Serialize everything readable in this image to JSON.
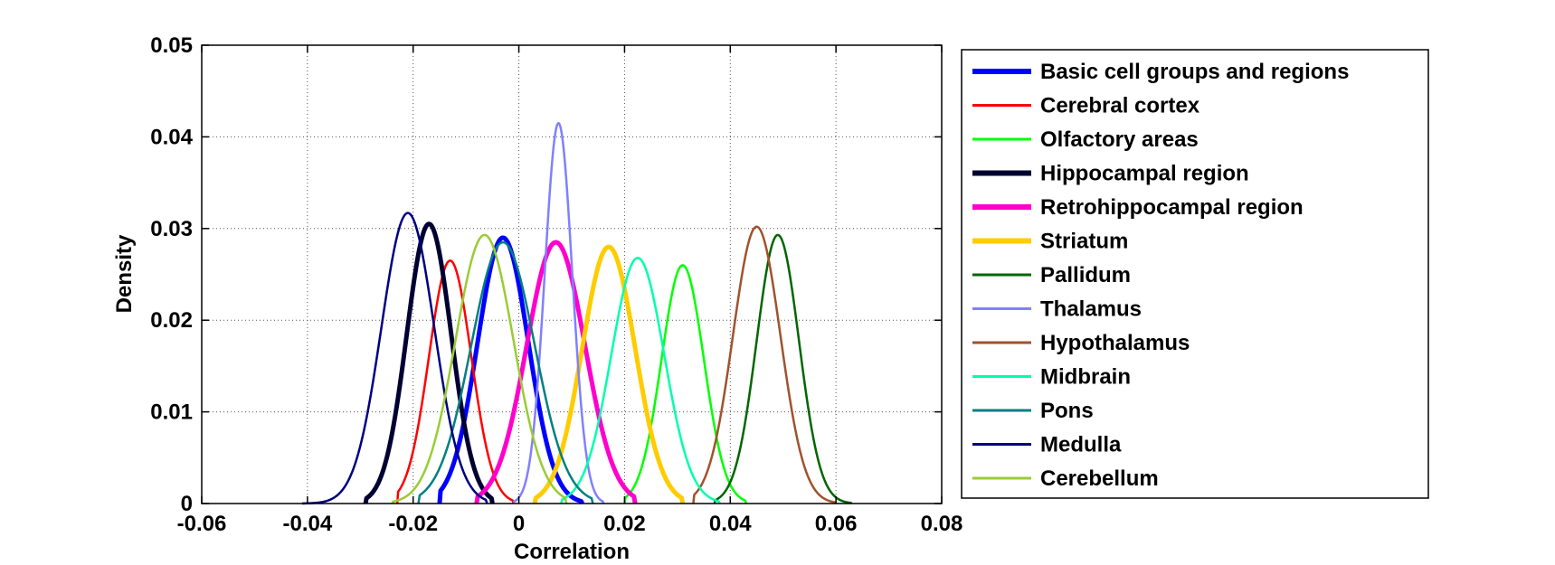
{
  "chart_data": {
    "type": "line",
    "title": "",
    "xlabel": "Correlation",
    "ylabel": "Density",
    "xlim": [
      -0.06,
      0.08
    ],
    "ylim": [
      0,
      0.05
    ],
    "xticks": [
      -0.06,
      -0.04,
      -0.02,
      0,
      0.02,
      0.04,
      0.06,
      0.08
    ],
    "xtick_labels": [
      "-0.06",
      "-0.04",
      "-0.02",
      "0",
      "0.02",
      "0.04",
      "0.06",
      "0.08"
    ],
    "yticks": [
      0,
      0.01,
      0.02,
      0.03,
      0.04,
      0.05
    ],
    "ytick_labels": [
      "0",
      "0.01",
      "0.02",
      "0.03",
      "0.04",
      "0.05"
    ],
    "grid": true,
    "legend_position": "outside-right",
    "series": [
      {
        "name": "Basic cell groups and regions",
        "color": "#0000ff",
        "width": "thick",
        "mean": -0.003,
        "sigma": 0.0048,
        "peak": 0.029,
        "range": [
          -0.015,
          0.012
        ]
      },
      {
        "name": "Cerebral cortex",
        "color": "#ff0000",
        "width": "thin",
        "mean": -0.013,
        "sigma": 0.004,
        "peak": 0.0265,
        "range": [
          -0.023,
          -0.001
        ]
      },
      {
        "name": "Olfactory areas",
        "color": "#00ff00",
        "width": "thin",
        "mean": 0.031,
        "sigma": 0.004,
        "peak": 0.026,
        "range": [
          0.02,
          0.043
        ]
      },
      {
        "name": "Hippocampal region",
        "color": "#000033",
        "width": "thick",
        "mean": -0.017,
        "sigma": 0.0042,
        "peak": 0.0305,
        "range": [
          -0.029,
          -0.005
        ]
      },
      {
        "name": "Retrohippocampal region",
        "color": "#ff00cc",
        "width": "thick",
        "mean": 0.007,
        "sigma": 0.0055,
        "peak": 0.0285,
        "range": [
          -0.008,
          0.022
        ]
      },
      {
        "name": "Striatum",
        "color": "#ffcc00",
        "width": "thick",
        "mean": 0.017,
        "sigma": 0.005,
        "peak": 0.028,
        "range": [
          0.003,
          0.031
        ]
      },
      {
        "name": "Pallidum",
        "color": "#006600",
        "width": "thin",
        "mean": 0.049,
        "sigma": 0.004,
        "peak": 0.0293,
        "range": [
          0.037,
          0.063
        ]
      },
      {
        "name": "Thalamus",
        "color": "#8080ff",
        "width": "thin",
        "mean": 0.0075,
        "sigma": 0.0026,
        "peak": 0.0415,
        "range": [
          -0.001,
          0.016
        ]
      },
      {
        "name": "Hypothalamus",
        "color": "#a0522d",
        "width": "thin",
        "mean": 0.045,
        "sigma": 0.0045,
        "peak": 0.0302,
        "range": [
          0.033,
          0.06
        ]
      },
      {
        "name": "Midbrain",
        "color": "#00ffaa",
        "width": "thin",
        "mean": 0.0225,
        "sigma": 0.005,
        "peak": 0.0268,
        "range": [
          0.008,
          0.038
        ]
      },
      {
        "name": "Pons",
        "color": "#008080",
        "width": "thin",
        "mean": -0.003,
        "sigma": 0.006,
        "peak": 0.0285,
        "range": [
          -0.019,
          0.014
        ]
      },
      {
        "name": "Medulla",
        "color": "#000080",
        "width": "thin",
        "mean": -0.021,
        "sigma": 0.005,
        "peak": 0.0317,
        "range": [
          -0.041,
          -0.006
        ]
      },
      {
        "name": "Cerebellum",
        "color": "#99cc33",
        "width": "thin",
        "mean": -0.0065,
        "sigma": 0.0055,
        "peak": 0.0293,
        "range": [
          -0.024,
          0.009
        ]
      }
    ]
  }
}
